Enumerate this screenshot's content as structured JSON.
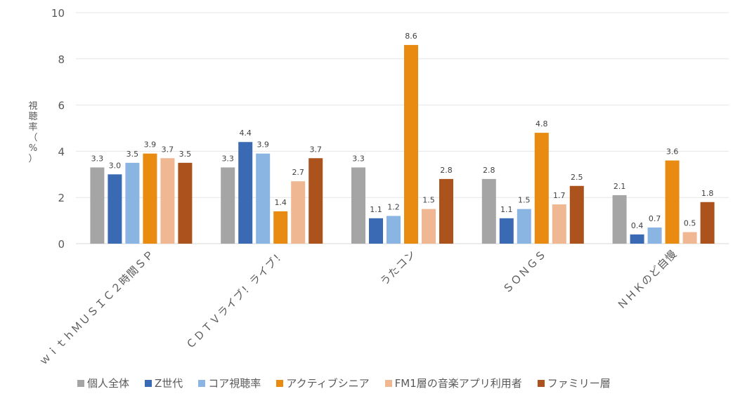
{
  "chart_data": {
    "type": "bar",
    "title": "",
    "xlabel": "",
    "ylabel": "視聴率（%）",
    "ylim": [
      0,
      10
    ],
    "yticks": [
      "0",
      "2",
      "4",
      "6",
      "8",
      "10"
    ],
    "grid": true,
    "legend_position": "bottom",
    "categories": [
      "ｗｉｔｈＭＵＳＩＣ２時間ＳＰ",
      "ＣＤＴＶライブ！ライブ！",
      "うたコン",
      "ＳＯＮＧＳ",
      "ＮＨＫのど自慢"
    ],
    "series": [
      {
        "name": "個人全体",
        "color": "#A5A5A5",
        "values": [
          3.3,
          3.3,
          3.3,
          2.8,
          2.1
        ],
        "labels": [
          "3.3",
          "3.3",
          "3.3",
          "2.8",
          "2.1"
        ]
      },
      {
        "name": "Z世代",
        "color": "#3A6AB3",
        "values": [
          3.0,
          4.4,
          1.1,
          1.1,
          0.4
        ],
        "labels": [
          "3.0",
          "4.4",
          "1.1",
          "1.1",
          "0.4"
        ]
      },
      {
        "name": "コア視聴率",
        "color": "#8AB4E2",
        "values": [
          3.5,
          3.9,
          1.2,
          1.5,
          0.7
        ],
        "labels": [
          "3.5",
          "3.9",
          "1.2",
          "1.5",
          "0.7"
        ]
      },
      {
        "name": "アクティブシニア",
        "color": "#E88B10",
        "values": [
          3.9,
          1.4,
          8.6,
          4.8,
          3.6
        ],
        "labels": [
          "3.9",
          "1.4",
          "8.6",
          "4.8",
          "3.6"
        ]
      },
      {
        "name": "FM1層の音楽アプリ利用者",
        "color": "#F0B793",
        "values": [
          3.7,
          2.7,
          1.5,
          1.7,
          0.5
        ],
        "labels": [
          "3.7",
          "2.7",
          "1.5",
          "1.7",
          "0.5"
        ]
      },
      {
        "name": "ファミリー層",
        "color": "#AC521C",
        "values": [
          3.5,
          3.7,
          2.8,
          2.5,
          1.8
        ],
        "labels": [
          "3.5",
          "3.7",
          "2.8",
          "2.5",
          "1.8"
        ]
      }
    ]
  }
}
